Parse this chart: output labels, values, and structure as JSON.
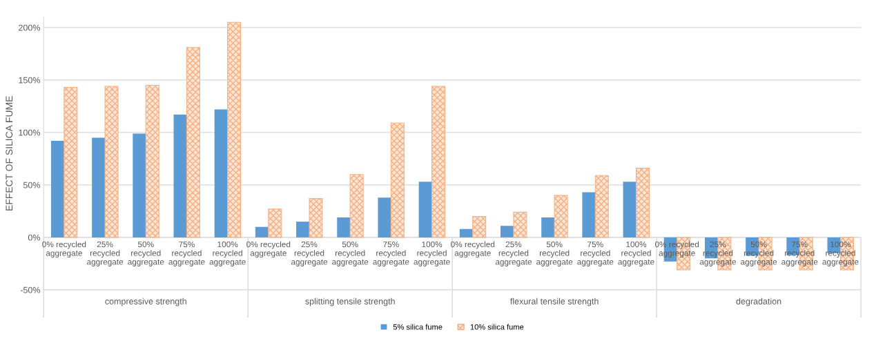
{
  "chart_data": {
    "type": "bar",
    "ylabel": "EFFECT OF SILICA FUME",
    "categories": [
      "0% recycled\naggregate",
      "25%\nrecycled\naggregate",
      "50%\nrecycled\naggregate",
      "75%\nrecycled\naggregate",
      "100%\nrecycled\naggregate",
      "0% recycled\naggregate",
      "25%\nrecycled\naggregate",
      "50%\nrecycled\naggregate",
      "75%\nrecycled\naggregate",
      "100%\nrecycled\naggregate",
      "0% recycled\naggregate",
      "25%\nrecycled\naggregate",
      "50%\nrecycled\naggregate",
      "75%\nrecycled\naggregate",
      "100%\nrecycled\naggregate",
      "0% recycled\naggregate",
      "25%\nrecycled\naggregate",
      "50%\nrecycled\naggregate",
      "75%\nrecycled\naggregate",
      "100%\nrecycled\naggregate"
    ],
    "series": [
      {
        "name": "5% silica fume",
        "color": "#5b9bd5",
        "values": [
          92,
          95,
          99,
          117,
          122,
          10,
          15,
          19,
          38,
          53,
          8,
          11,
          19,
          43,
          53,
          -23,
          -20,
          -17.5,
          -17,
          -15
        ]
      },
      {
        "name": "10% silica fume",
        "color": "#f4b183",
        "values": [
          143,
          144,
          145,
          181,
          205,
          27,
          37,
          60,
          109,
          144,
          20,
          24,
          40,
          59,
          66,
          -31,
          -31,
          -31,
          -31,
          -31
        ]
      }
    ],
    "annotations": [
      "compressive strength",
      "splitting tensile strength",
      "flexural tensile strength",
      "degradation"
    ],
    "ylim": [
      -50,
      210
    ],
    "yticks": [
      {
        "value": -50,
        "label": "-50%"
      },
      {
        "value": 0,
        "label": "0%"
      },
      {
        "value": 50,
        "label": "50%"
      },
      {
        "value": 100,
        "label": "100%"
      },
      {
        "value": 150,
        "label": "150%"
      },
      {
        "value": 200,
        "label": "200%"
      }
    ],
    "grid": "y",
    "legend": "bottom"
  }
}
